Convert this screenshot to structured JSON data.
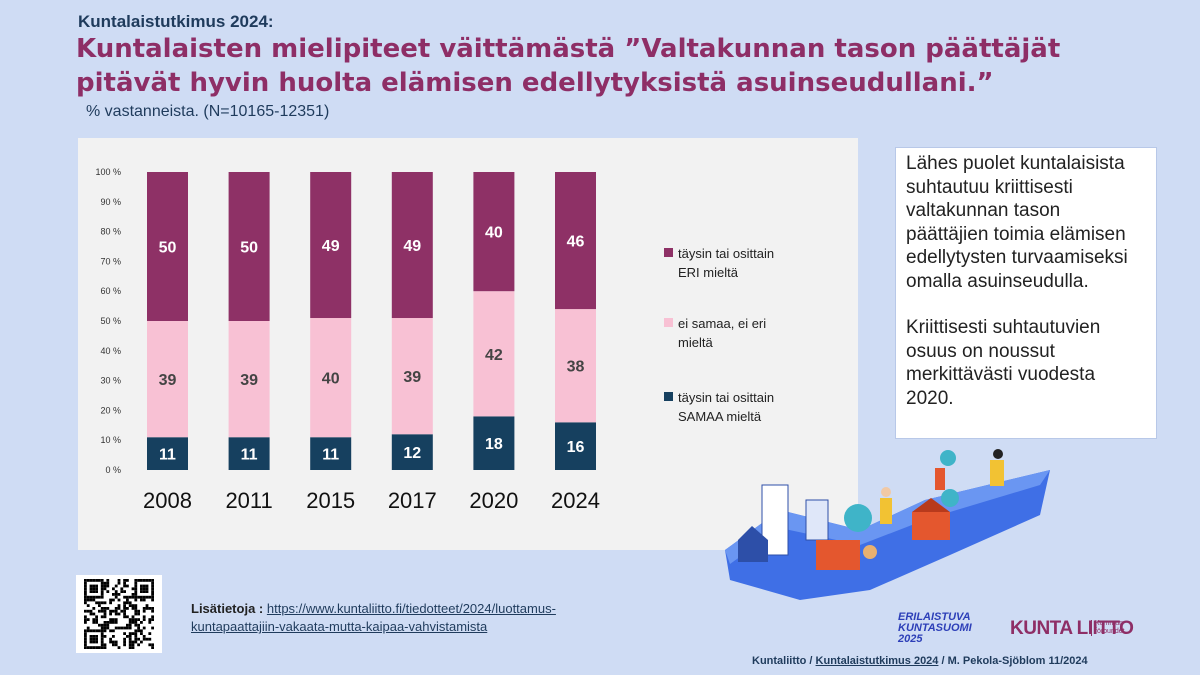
{
  "header": {
    "kicker": "Kuntalaistutkimus 2024:",
    "title": "Kuntalaisten mielipiteet väittämästä ”Valtakunnan tason päättäjät pitävät hyvin huolta elämisen edellytyksistä asuinseudullani.”",
    "subtitle": "% vastanneista. (N=10165-12351)"
  },
  "chart_data": {
    "type": "bar",
    "stacked": true,
    "categories": [
      "2008",
      "2011",
      "2015",
      "2017",
      "2020",
      "2024"
    ],
    "series": [
      {
        "name": "täysin tai osittain SAMAA mieltä",
        "color": "#16405f",
        "values": [
          11,
          11,
          11,
          12,
          18,
          16
        ]
      },
      {
        "name": "ei samaa, ei eri mieltä",
        "color": "#f8c1d4",
        "values": [
          39,
          39,
          40,
          39,
          42,
          38
        ]
      },
      {
        "name": "täysin tai osittain ERI mieltä",
        "color": "#8e3166",
        "values": [
          50,
          50,
          49,
          49,
          40,
          46
        ]
      }
    ],
    "legend_labels": [
      {
        "line1": "täysin tai osittain",
        "line2": "ERI mieltä",
        "color": "#8e3166"
      },
      {
        "line1": "ei samaa, ei eri",
        "line2": "mieltä",
        "color": "#f8c1d4"
      },
      {
        "line1": "täysin tai osittain",
        "line2": "SAMAA mieltä",
        "color": "#16405f"
      }
    ],
    "yticks": [
      "0 %",
      "10 %",
      "20 %",
      "30 %",
      "40 %",
      "50 %",
      "60 %",
      "70 %",
      "80 %",
      "90 %",
      "100 %"
    ],
    "ylim": [
      0,
      100
    ],
    "legend_position": "right",
    "grid": false
  },
  "note": {
    "p1": "Lähes puolet kuntalaisista suhtautuu kriittisesti valtakunnan tason päättäjien toimia elämisen edellytysten turvaamiseksi omalla asuinseudulla.",
    "p2": "Kriittisesti suhtautuvien osuus on noussut merkittävästi vuodesta 2020."
  },
  "more_info": {
    "label": "Lisätietoja :",
    "url_line1": "https://www.kuntaliitto.fi/tiedotteet/2024/luottamus-",
    "url_line2": "kuntapaattajiin-vakaata-mutta-kaipaa-vahvistamista"
  },
  "footer": {
    "org": "Kuntaliitto / ",
    "study": "Kuntalaistutkimus 2024",
    "author": " / M. Pekola-Sjöblom 11/2024"
  },
  "logos": {
    "erilaistuva_1": "ERILAISTUVA",
    "erilaistuva_2": "KUNTASUOMI",
    "erilaistuva_3": "2025",
    "kuntaliitto": "KUNTA LIITTO",
    "kuntaliitto_sub1": "Kommun-",
    "kuntaliitto_sub2": "förbundet"
  }
}
